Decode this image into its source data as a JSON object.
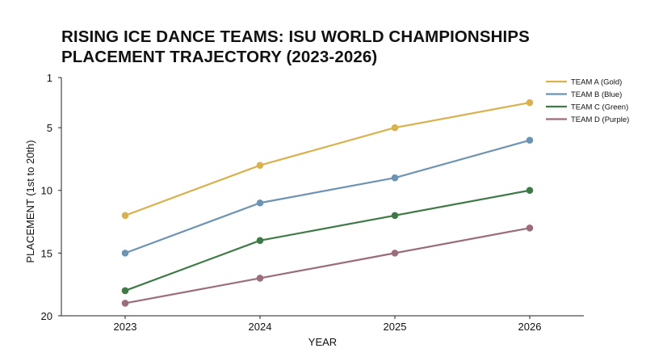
{
  "chart_data": {
    "type": "line",
    "title_lines": [
      "RISING ICE DANCE TEAMS: ISU WORLD CHAMPIONSHIPS",
      "PLACEMENT TRAJECTORY (2023-2026)"
    ],
    "xlabel": "YEAR",
    "ylabel": "PLACEMENT (1st to 20th)",
    "x": [
      "2023",
      "2024",
      "2025",
      "2026"
    ],
    "y_ticks": [
      1,
      5,
      10,
      15,
      20
    ],
    "ylim": [
      1,
      20
    ],
    "y_inverted": true,
    "grid": false,
    "legend_position": "top-right",
    "series": [
      {
        "name": "TEAM A (Gold)",
        "color": "#d9b24f",
        "values": [
          12,
          8,
          5,
          3
        ]
      },
      {
        "name": "TEAM B (Blue)",
        "color": "#6d93b3",
        "values": [
          15,
          11,
          9,
          6
        ]
      },
      {
        "name": "TEAM C (Green)",
        "color": "#3f7a46",
        "values": [
          18,
          14,
          12,
          10
        ]
      },
      {
        "name": "TEAM D (Purple)",
        "color": "#9c6b7e",
        "values": [
          19,
          17,
          15,
          13
        ]
      }
    ]
  }
}
